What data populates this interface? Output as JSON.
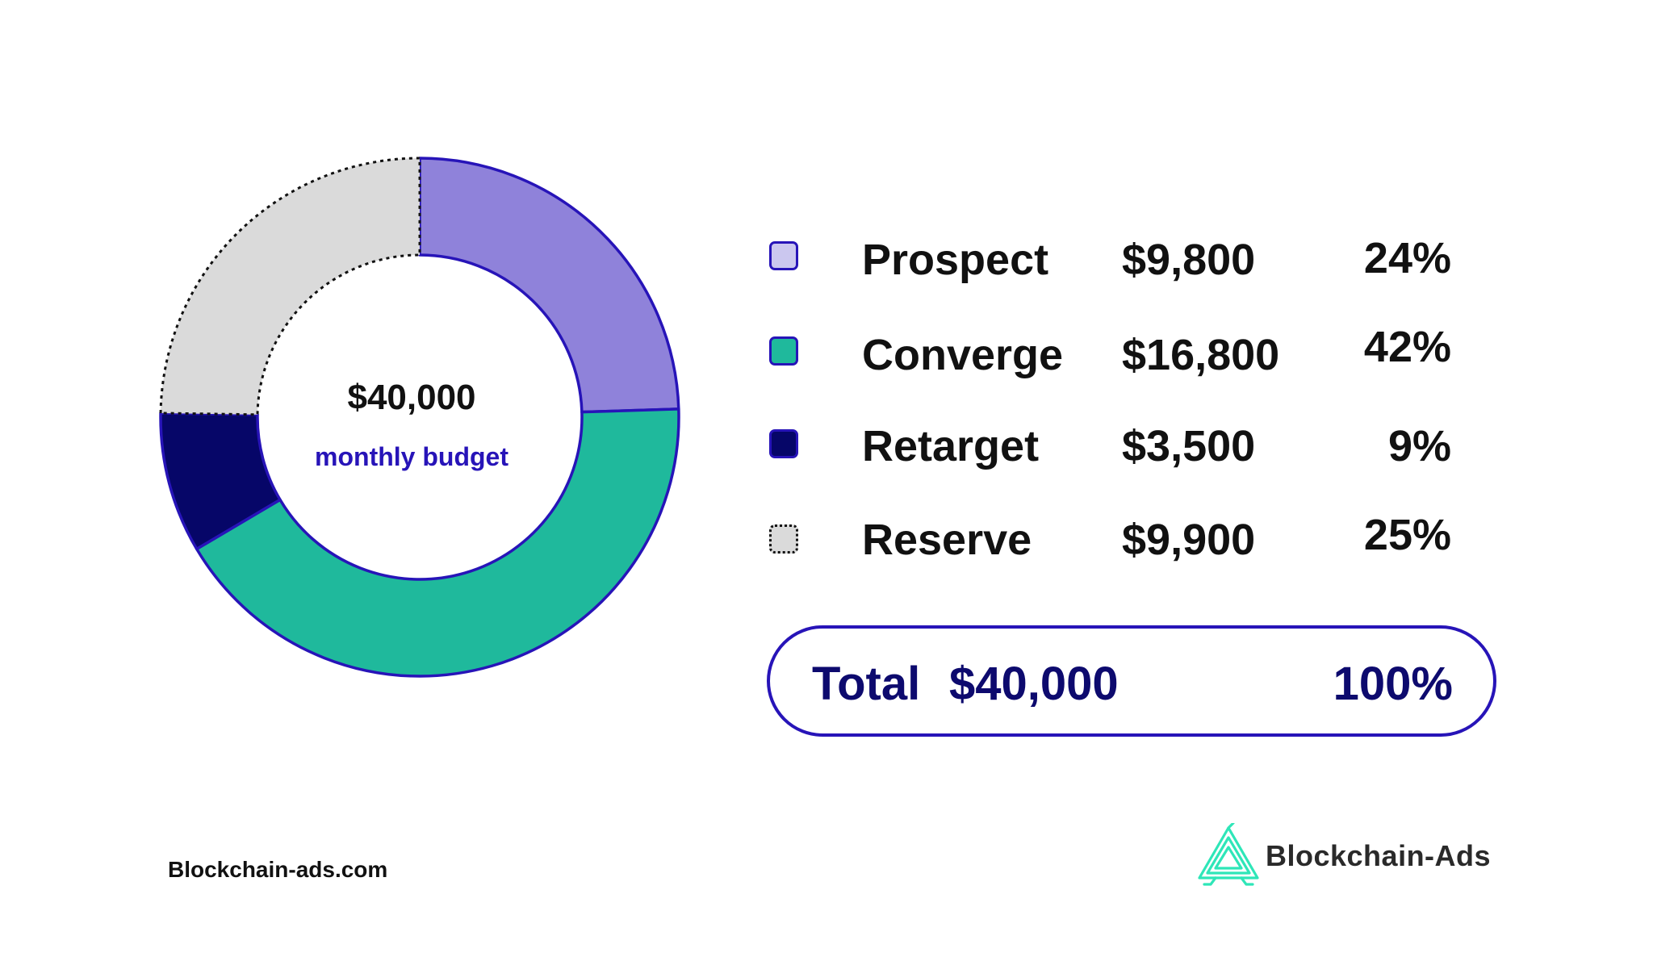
{
  "chart_data": {
    "type": "pie",
    "series": [
      {
        "name": "Prospect",
        "value": 9800,
        "amount_label": "$9,800",
        "percent_label": "24%",
        "color": "#8f82da",
        "swatch_color": "#cbc7ef",
        "dotted": false
      },
      {
        "name": "Converge",
        "value": 16800,
        "amount_label": "$16,800",
        "percent_label": "42%",
        "color": "#1fb99c",
        "swatch_color": "#1fb99c",
        "dotted": false
      },
      {
        "name": "Retarget",
        "value": 3500,
        "amount_label": "$3,500",
        "percent_label": "9%",
        "color": "#060668",
        "swatch_color": "#060668",
        "dotted": false
      },
      {
        "name": "Reserve",
        "value": 9900,
        "amount_label": "$9,900",
        "percent_label": "25%",
        "color": "#dadada",
        "swatch_color": "#dadada",
        "dotted": true
      }
    ],
    "center": {
      "amount": "$40,000",
      "label": "monthly budget"
    },
    "legend_placement": "right"
  },
  "total": {
    "label": "Total",
    "amount": "$40,000",
    "percent": "100%"
  },
  "footer": {
    "site": "Blockchain-ads.com",
    "brand": "Blockchain-Ads"
  },
  "colors": {
    "outline": "#2714b8",
    "total_text": "#0d0a6e",
    "brand_accent": "#2ee6b8"
  },
  "icons": {
    "brand_logo": "blockchain-ads-logo-icon"
  }
}
